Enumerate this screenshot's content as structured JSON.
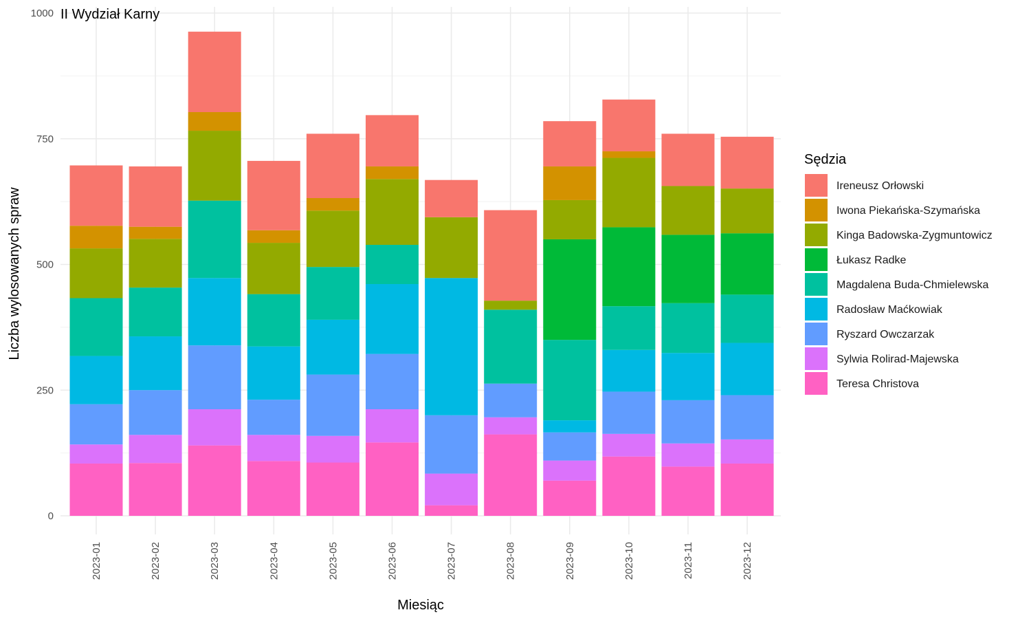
{
  "chart_data": {
    "type": "bar",
    "stacked": true,
    "title": "II Wydział Karny",
    "xlabel": "Miesiąc",
    "ylabel": "Liczba wylosowanych spraw",
    "ylim": [
      0,
      1000
    ],
    "yticks": [
      "0",
      "250",
      "500",
      "750",
      "1000"
    ],
    "grid": true,
    "legend_title": "Sędzia",
    "legend_position": "right",
    "categories": [
      "2023-01",
      "2023-02",
      "2023-03",
      "2023-04",
      "2023-05",
      "2023-06",
      "2023-07",
      "2023-08",
      "2023-09",
      "2023-10",
      "2023-11",
      "2023-12"
    ],
    "series": [
      {
        "name": "Teresa Christova",
        "color": "#FF61C3",
        "values": [
          104,
          105,
          140,
          109,
          106,
          146,
          21,
          162,
          70,
          118,
          98,
          104
        ]
      },
      {
        "name": "Sylwia Rolirad-Majewska",
        "color": "#DB72FB",
        "values": [
          38,
          56,
          72,
          52,
          53,
          66,
          63,
          34,
          40,
          45,
          46,
          48
        ]
      },
      {
        "name": "Ryszard Owczarzak",
        "color": "#619CFF",
        "values": [
          80,
          89,
          127,
          70,
          122,
          110,
          116,
          67,
          56,
          84,
          86,
          88
        ]
      },
      {
        "name": "Radosław Maćkowiak",
        "color": "#00B9E3",
        "values": [
          96,
          107,
          134,
          106,
          109,
          139,
          273,
          0,
          24,
          83,
          94,
          104
        ]
      },
      {
        "name": "Magdalena Buda-Chmielewska",
        "color": "#00C19F",
        "values": [
          115,
          97,
          154,
          104,
          105,
          78,
          0,
          147,
          160,
          87,
          99,
          96
        ]
      },
      {
        "name": "Łukasz Radke",
        "color": "#00BA38",
        "values": [
          0,
          0,
          0,
          0,
          0,
          0,
          0,
          0,
          200,
          157,
          136,
          122
        ]
      },
      {
        "name": "Kinga Badowska-Zygmuntowicz",
        "color": "#93AA00",
        "values": [
          99,
          97,
          139,
          102,
          112,
          131,
          121,
          18,
          78,
          138,
          97,
          89
        ]
      },
      {
        "name": "Iwona Piekańska-Szymańska",
        "color": "#D39200",
        "values": [
          45,
          24,
          37,
          25,
          25,
          25,
          0,
          0,
          67,
          13,
          0,
          0
        ]
      },
      {
        "name": "Ireneusz Orłowski",
        "color": "#F8766D",
        "values": [
          120,
          120,
          160,
          138,
          128,
          102,
          74,
          180,
          90,
          103,
          104,
          103
        ]
      }
    ],
    "legend_order": [
      "Ireneusz Orłowski",
      "Iwona Piekańska-Szymańska",
      "Kinga Badowska-Zygmuntowicz",
      "Łukasz Radke",
      "Magdalena Buda-Chmielewska",
      "Radosław Maćkowiak",
      "Ryszard Owczarzak",
      "Sylwia Rolirad-Majewska",
      "Teresa Christova"
    ]
  }
}
